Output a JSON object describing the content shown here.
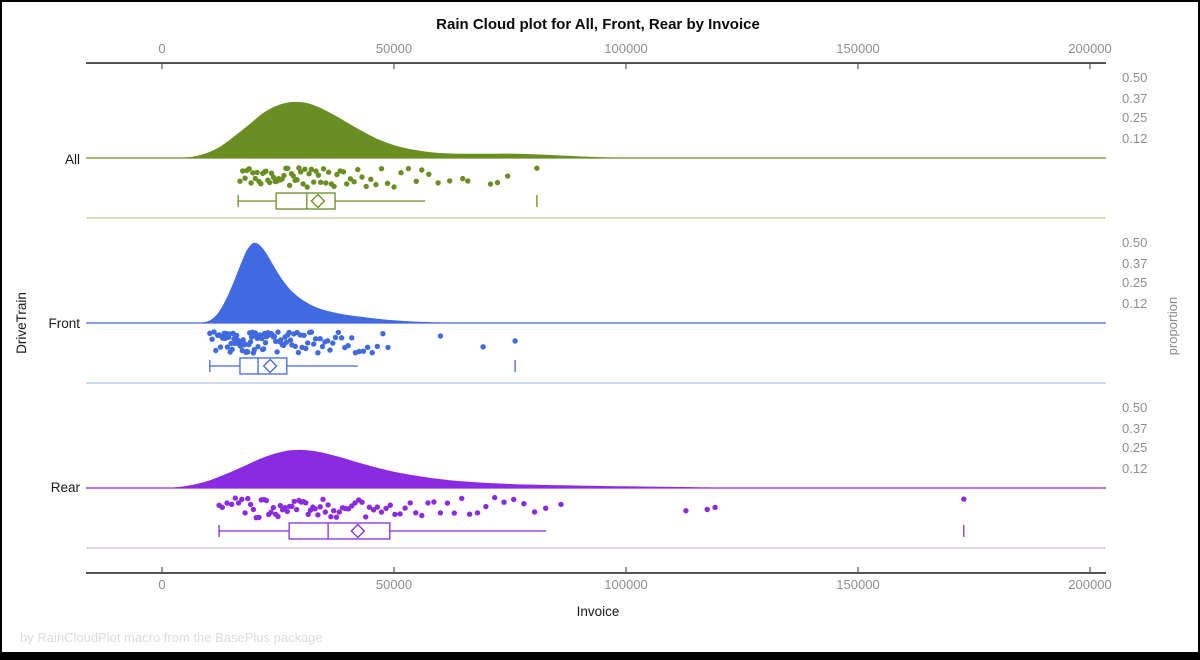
{
  "chart_data": {
    "type": "raincloud",
    "title": "Rain Cloud plot for All, Front, Rear by Invoice",
    "xlabel": "Invoice",
    "ylabel": "DriveTrain",
    "y2label": "proportion",
    "footnote": "by RainCloudPlot macro from the BasePlus package",
    "x_axis": {
      "min": -17000,
      "max": 207000,
      "ticks": [
        0,
        50000,
        100000,
        150000,
        200000
      ],
      "tick_labels": [
        "0",
        "50000",
        "100000",
        "150000",
        "200000"
      ],
      "grid": false
    },
    "proportion_ticks": [
      0.5,
      0.37,
      0.25,
      0.12
    ],
    "proportion_tick_labels": [
      "0.50",
      "0.37",
      "0.25",
      "0.12"
    ],
    "legend": "none",
    "groups": [
      {
        "name": "All",
        "color": "#6B8E23",
        "light_color": "#CCD5A5",
        "density": [
          [
            4000,
            0
          ],
          [
            7000,
            0.01
          ],
          [
            10000,
            0.035
          ],
          [
            13000,
            0.08
          ],
          [
            16000,
            0.145
          ],
          [
            19000,
            0.215
          ],
          [
            22000,
            0.285
          ],
          [
            25000,
            0.33
          ],
          [
            28000,
            0.35
          ],
          [
            31000,
            0.345
          ],
          [
            34000,
            0.315
          ],
          [
            37000,
            0.27
          ],
          [
            40000,
            0.22
          ],
          [
            43000,
            0.17
          ],
          [
            46000,
            0.125
          ],
          [
            49000,
            0.09
          ],
          [
            52000,
            0.065
          ],
          [
            55000,
            0.048
          ],
          [
            58000,
            0.036
          ],
          [
            61000,
            0.03
          ],
          [
            64000,
            0.027
          ],
          [
            68000,
            0.026
          ],
          [
            72000,
            0.027
          ],
          [
            76000,
            0.027
          ],
          [
            80000,
            0.024
          ],
          [
            84000,
            0.019
          ],
          [
            88000,
            0.013
          ],
          [
            92000,
            0.008
          ],
          [
            96000,
            0.004
          ],
          [
            100000,
            0.002
          ],
          [
            106000,
            0.001
          ],
          [
            112000,
            0
          ]
        ],
        "points": [
          16800,
          17400,
          17900,
          18300,
          18800,
          19200,
          19600,
          20100,
          20500,
          20900,
          21300,
          21700,
          22100,
          22400,
          22800,
          23200,
          23600,
          24000,
          24400,
          24800,
          25100,
          25500,
          25900,
          26300,
          26700,
          27100,
          27500,
          27900,
          28300,
          28700,
          29100,
          29500,
          29900,
          30400,
          30800,
          31300,
          31700,
          32200,
          32700,
          33200,
          33700,
          34200,
          34800,
          35300,
          35900,
          36500,
          37100,
          37700,
          38400,
          39100,
          39800,
          40600,
          41400,
          42200,
          43100,
          44000,
          45000,
          46100,
          47300,
          48600,
          50000,
          51500,
          53100,
          54800,
          56000,
          57500,
          59500,
          62000,
          64800,
          65900,
          70800,
          72300,
          74500,
          80800
        ],
        "box": {
          "whisker_low": 16400,
          "q1": 24600,
          "median": 31200,
          "mean": 33600,
          "q3": 37300,
          "whisker_high": 56700,
          "outliers": [
            80800
          ]
        }
      },
      {
        "name": "Front",
        "color": "#4169E1",
        "light_color": "#B9CBF1",
        "density": [
          [
            7000,
            0
          ],
          [
            9500,
            0.008
          ],
          [
            11000,
            0.03
          ],
          [
            12500,
            0.08
          ],
          [
            14000,
            0.16
          ],
          [
            15500,
            0.26
          ],
          [
            17000,
            0.37
          ],
          [
            18200,
            0.45
          ],
          [
            19400,
            0.495
          ],
          [
            20300,
            0.5
          ],
          [
            21300,
            0.48
          ],
          [
            22500,
            0.435
          ],
          [
            24000,
            0.36
          ],
          [
            25500,
            0.29
          ],
          [
            27000,
            0.23
          ],
          [
            28500,
            0.185
          ],
          [
            30000,
            0.15
          ],
          [
            32000,
            0.115
          ],
          [
            34000,
            0.09
          ],
          [
            36000,
            0.073
          ],
          [
            38000,
            0.06
          ],
          [
            40000,
            0.05
          ],
          [
            42000,
            0.042
          ],
          [
            44000,
            0.035
          ],
          [
            46000,
            0.028
          ],
          [
            48000,
            0.022
          ],
          [
            50000,
            0.017
          ],
          [
            53000,
            0.011
          ],
          [
            56000,
            0.007
          ],
          [
            59000,
            0.004
          ],
          [
            62000,
            0.003
          ],
          [
            66000,
            0.002
          ],
          [
            70000,
            0.001
          ],
          [
            75000,
            0
          ]
        ],
        "points": [
          10300,
          10800,
          11200,
          11600,
          12000,
          12300,
          12600,
          12900,
          13100,
          13400,
          13600,
          13900,
          14100,
          14300,
          14500,
          14700,
          14900,
          15100,
          15300,
          15500,
          15700,
          15900,
          16100,
          16300,
          16500,
          16700,
          16900,
          17100,
          17300,
          17500,
          17700,
          17900,
          18100,
          18300,
          18500,
          18700,
          18900,
          19100,
          19300,
          19500,
          19700,
          19900,
          20100,
          20300,
          20500,
          20700,
          20900,
          21100,
          21300,
          21500,
          21700,
          21900,
          22100,
          22300,
          22500,
          22800,
          23000,
          23200,
          23500,
          23700,
          24000,
          24200,
          24500,
          24800,
          25000,
          25300,
          25600,
          25900,
          26200,
          26500,
          26800,
          27100,
          27400,
          27700,
          28000,
          28400,
          28700,
          29100,
          29400,
          29800,
          30200,
          30600,
          31000,
          31400,
          31800,
          32200,
          32700,
          33100,
          33600,
          34100,
          34600,
          35100,
          35700,
          36200,
          36800,
          37400,
          38000,
          38700,
          39400,
          40100,
          40900,
          41700,
          42500,
          43400,
          44300,
          45300,
          46400,
          47600,
          48700,
          60000,
          69200,
          76100
        ],
        "box": {
          "whisker_low": 10300,
          "q1": 16800,
          "median": 20700,
          "mean": 23300,
          "q3": 26900,
          "whisker_high": 42200,
          "outliers": [
            76100
          ]
        }
      },
      {
        "name": "Rear",
        "color": "#8A2BE2",
        "light_color": "#DCC2F1",
        "density": [
          [
            1000,
            0
          ],
          [
            4000,
            0.008
          ],
          [
            7000,
            0.022
          ],
          [
            10000,
            0.045
          ],
          [
            13000,
            0.078
          ],
          [
            16000,
            0.115
          ],
          [
            19000,
            0.155
          ],
          [
            22000,
            0.192
          ],
          [
            25000,
            0.22
          ],
          [
            27500,
            0.235
          ],
          [
            30000,
            0.238
          ],
          [
            32500,
            0.232
          ],
          [
            35000,
            0.218
          ],
          [
            38000,
            0.196
          ],
          [
            41000,
            0.17
          ],
          [
            44000,
            0.145
          ],
          [
            47000,
            0.122
          ],
          [
            50000,
            0.102
          ],
          [
            53000,
            0.085
          ],
          [
            56000,
            0.071
          ],
          [
            59000,
            0.059
          ],
          [
            62000,
            0.049
          ],
          [
            65000,
            0.041
          ],
          [
            68000,
            0.035
          ],
          [
            72000,
            0.029
          ],
          [
            76000,
            0.024
          ],
          [
            80000,
            0.021
          ],
          [
            84000,
            0.018
          ],
          [
            88000,
            0.016
          ],
          [
            92000,
            0.014
          ],
          [
            96000,
            0.012
          ],
          [
            100000,
            0.011
          ],
          [
            105000,
            0.009
          ],
          [
            110000,
            0.007
          ],
          [
            115000,
            0.005
          ],
          [
            120000,
            0.003
          ],
          [
            126000,
            0.0015
          ],
          [
            132000,
            0
          ]
        ],
        "points": [
          12300,
          13000,
          14000,
          15000,
          15800,
          16500,
          17200,
          17900,
          18500,
          19100,
          19700,
          20300,
          20900,
          21400,
          22000,
          22500,
          23000,
          23500,
          24000,
          24500,
          25000,
          25500,
          26000,
          26500,
          27000,
          27500,
          28000,
          28500,
          29000,
          29500,
          30000,
          30500,
          31000,
          31500,
          32000,
          32500,
          33000,
          33600,
          34100,
          34700,
          35200,
          35800,
          36400,
          37000,
          37600,
          38200,
          38900,
          39500,
          40200,
          40900,
          41600,
          42400,
          43100,
          43900,
          44700,
          45600,
          46400,
          47300,
          48300,
          49200,
          50200,
          51300,
          52400,
          53500,
          54700,
          56000,
          57300,
          58600,
          60000,
          61500,
          63000,
          64600,
          66300,
          68000,
          69800,
          71700,
          73700,
          75800,
          78000,
          80300,
          82700,
          86000,
          112900,
          117500,
          119200,
          172800
        ],
        "box": {
          "whisker_low": 12300,
          "q1": 27400,
          "median": 35800,
          "mean": 42200,
          "q3": 49100,
          "whisker_high": 82800,
          "outliers": [
            172800
          ]
        }
      }
    ]
  }
}
